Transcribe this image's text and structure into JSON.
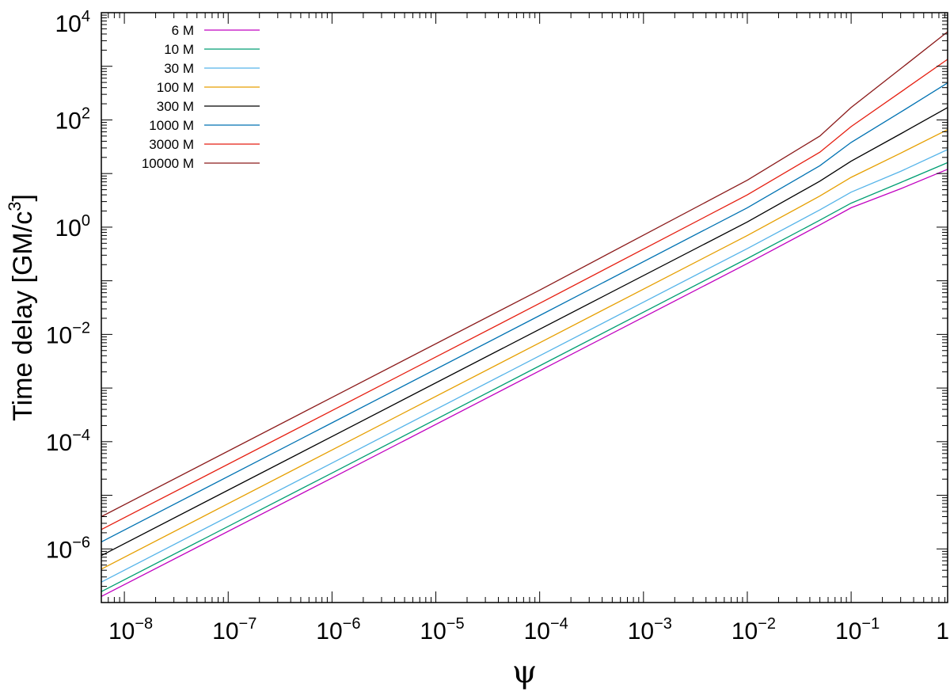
{
  "chart_data": {
    "type": "line",
    "xlabel": "ψ",
    "ylabel": "Time delay [GM/c³]",
    "ylabel_parts": {
      "main": "Time delay [GM/c",
      "sup": "3",
      "close": "]"
    },
    "x_scale": "log",
    "y_scale": "log",
    "xlim": [
      6e-09,
      0.85
    ],
    "ylim": [
      1e-07,
      10000
    ],
    "grid": false,
    "legend_position": "top-left",
    "x_ticks": [
      {
        "value": 1e-08,
        "base": "10",
        "exp": "−8"
      },
      {
        "value": 1e-07,
        "base": "10",
        "exp": "−7"
      },
      {
        "value": 1e-06,
        "base": "10",
        "exp": "−6"
      },
      {
        "value": 1e-05,
        "base": "10",
        "exp": "−5"
      },
      {
        "value": 0.0001,
        "base": "10",
        "exp": "−4"
      },
      {
        "value": 0.001,
        "base": "10",
        "exp": "−3"
      },
      {
        "value": 0.01,
        "base": "10",
        "exp": "−2"
      },
      {
        "value": 0.1,
        "base": "10",
        "exp": "−1"
      },
      {
        "value": 1,
        "base": "1",
        "exp": ""
      }
    ],
    "y_ticks": [
      {
        "value": 1e-06,
        "base": "10",
        "exp": "−6"
      },
      {
        "value": 0.0001,
        "base": "10",
        "exp": "−4"
      },
      {
        "value": 0.01,
        "base": "10",
        "exp": "−2"
      },
      {
        "value": 1,
        "base": "10",
        "exp": "0"
      },
      {
        "value": 100,
        "base": "10",
        "exp": "2"
      },
      {
        "value": 10000,
        "base": "10",
        "exp": "4"
      }
    ],
    "series": [
      {
        "name": "6 M",
        "color": "#c000c0",
        "points": [
          [
            6e-09,
            1.3e-07
          ],
          [
            1e-06,
            2.1e-05
          ],
          [
            0.0001,
            0.0021
          ],
          [
            0.01,
            0.21
          ],
          [
            0.05,
            1.1
          ],
          [
            0.1,
            2.3
          ],
          [
            0.3,
            5.2
          ],
          [
            0.85,
            12
          ]
        ]
      },
      {
        "name": "10 M",
        "color": "#009e73",
        "points": [
          [
            6e-09,
            1.6e-07
          ],
          [
            1e-06,
            2.6e-05
          ],
          [
            0.0001,
            0.0026
          ],
          [
            0.01,
            0.26
          ],
          [
            0.05,
            1.35
          ],
          [
            0.1,
            2.8
          ],
          [
            0.3,
            6.8
          ],
          [
            0.85,
            16
          ]
        ]
      },
      {
        "name": "30 M",
        "color": "#56b4e9",
        "points": [
          [
            6e-09,
            2.4e-07
          ],
          [
            1e-06,
            4e-05
          ],
          [
            0.0001,
            0.004
          ],
          [
            0.01,
            0.4
          ],
          [
            0.05,
            2.1
          ],
          [
            0.1,
            4.5
          ],
          [
            0.3,
            11
          ],
          [
            0.85,
            28
          ]
        ]
      },
      {
        "name": "100 M",
        "color": "#e69f00",
        "points": [
          [
            6e-09,
            4.2e-07
          ],
          [
            1e-06,
            7e-05
          ],
          [
            0.0001,
            0.007
          ],
          [
            0.01,
            0.7
          ],
          [
            0.05,
            3.8
          ],
          [
            0.1,
            8.5
          ],
          [
            0.3,
            24
          ],
          [
            0.85,
            66
          ]
        ]
      },
      {
        "name": "300 M",
        "color": "#000000",
        "points": [
          [
            6e-09,
            7.5e-07
          ],
          [
            1e-06,
            0.000125
          ],
          [
            0.0001,
            0.0125
          ],
          [
            0.01,
            1.25
          ],
          [
            0.05,
            7.2
          ],
          [
            0.1,
            17
          ],
          [
            0.3,
            55
          ],
          [
            0.85,
            170
          ]
        ]
      },
      {
        "name": "1000 M",
        "color": "#0072b2",
        "points": [
          [
            6e-09,
            1.35e-06
          ],
          [
            1e-06,
            0.000225
          ],
          [
            0.0001,
            0.0225
          ],
          [
            0.01,
            2.3
          ],
          [
            0.05,
            14
          ],
          [
            0.1,
            38
          ],
          [
            0.3,
            140
          ],
          [
            0.85,
            490
          ]
        ]
      },
      {
        "name": "3000 M",
        "color": "#e51e10",
        "points": [
          [
            6e-09,
            2.3e-06
          ],
          [
            1e-06,
            0.00038
          ],
          [
            0.0001,
            0.038
          ],
          [
            0.01,
            4
          ],
          [
            0.05,
            25
          ],
          [
            0.1,
            75
          ],
          [
            0.3,
            330
          ],
          [
            0.85,
            1350
          ]
        ]
      },
      {
        "name": "10000 M",
        "color": "#8b1a1a",
        "points": [
          [
            6e-09,
            4e-06
          ],
          [
            1e-06,
            0.00067
          ],
          [
            0.0001,
            0.067
          ],
          [
            0.01,
            7.5
          ],
          [
            0.05,
            50
          ],
          [
            0.1,
            170
          ],
          [
            0.3,
            900
          ],
          [
            0.85,
            4400
          ]
        ]
      }
    ]
  }
}
